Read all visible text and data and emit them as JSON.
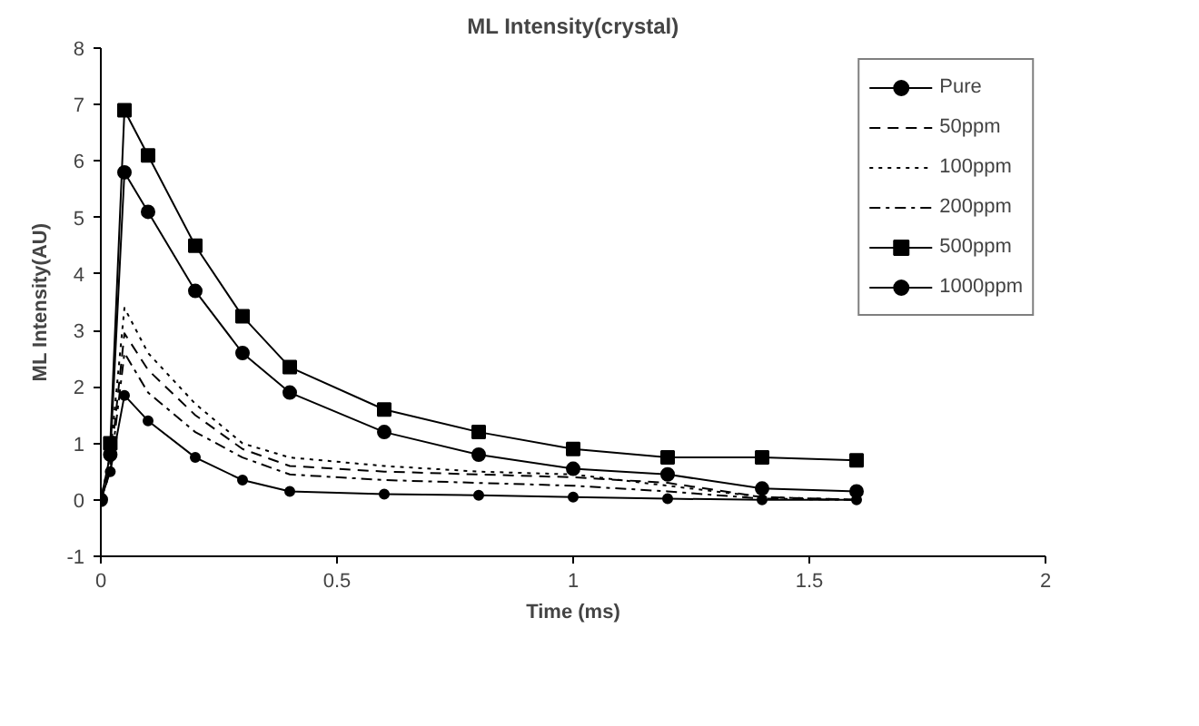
{
  "chart_data": {
    "type": "line",
    "title": "ML Intensity(crystal)",
    "xlabel": "Time (ms)",
    "ylabel": "ML Intensity(AU)",
    "x": [
      0,
      0.02,
      0.05,
      0.1,
      0.2,
      0.3,
      0.4,
      0.6,
      0.8,
      1.0,
      1.2,
      1.4,
      1.6
    ],
    "series": [
      {
        "name": "Pure",
        "color": "#000000",
        "marker": "circle",
        "line_style": "solid",
        "values": [
          0,
          0.5,
          1.85,
          1.4,
          0.75,
          0.35,
          0.15,
          0.1,
          0.08,
          0.05,
          0.02,
          0,
          0
        ]
      },
      {
        "name": "50ppm",
        "color": "#000000",
        "marker": "none",
        "line_style": "dashed",
        "values": [
          0,
          0.6,
          2.95,
          2.3,
          1.5,
          0.9,
          0.6,
          0.5,
          0.45,
          0.4,
          0.3,
          0.05,
          0
        ]
      },
      {
        "name": "100ppm",
        "color": "#000000",
        "marker": "none",
        "line_style": "dotted",
        "values": [
          0,
          0.8,
          3.4,
          2.6,
          1.7,
          1.0,
          0.75,
          0.6,
          0.5,
          0.45,
          0.25,
          0.05,
          0
        ]
      },
      {
        "name": "200ppm",
        "color": "#000000",
        "marker": "none",
        "line_style": "dashdot",
        "values": [
          0,
          0.5,
          2.6,
          1.9,
          1.2,
          0.75,
          0.45,
          0.35,
          0.3,
          0.25,
          0.15,
          0.02,
          0
        ]
      },
      {
        "name": "500ppm",
        "color": "#000000",
        "marker": "square",
        "line_style": "solid",
        "values": [
          null,
          1.0,
          6.9,
          6.1,
          4.5,
          3.25,
          2.35,
          1.6,
          1.2,
          0.9,
          0.75,
          0.75,
          0.7
        ]
      },
      {
        "name": "1000ppm",
        "color": "#000000",
        "marker": "circle",
        "line_style": "solid",
        "values": [
          0,
          0.8,
          5.8,
          5.1,
          3.7,
          2.6,
          1.9,
          1.2,
          0.8,
          0.55,
          0.45,
          0.2,
          0.15
        ]
      }
    ],
    "xlim": [
      0,
      2
    ],
    "xticks": [
      0,
      0.5,
      1,
      1.5,
      2
    ],
    "ylim": [
      -1,
      8
    ],
    "yticks": [
      -1,
      0,
      1,
      2,
      3,
      4,
      5,
      6,
      7,
      8
    ],
    "grid": false,
    "legend": "top right"
  }
}
